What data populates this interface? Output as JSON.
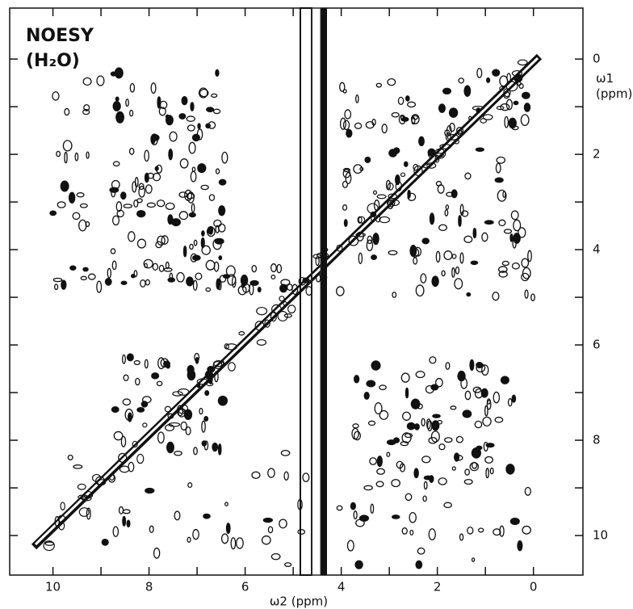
{
  "chart_data": {
    "type": "contour",
    "title": "NOESY",
    "subtitle": "(H₂O)",
    "x_label": "ω2 (ppm)",
    "y_label": "ω1 (ppm)",
    "xlim": [
      10.9,
      -1.03
    ],
    "ylim": [
      -1.07,
      10.83
    ],
    "xticks": [
      10,
      8,
      6,
      4,
      2,
      0
    ],
    "yticks": [
      0,
      2,
      4,
      6,
      8,
      10
    ],
    "color": "#111111"
  }
}
